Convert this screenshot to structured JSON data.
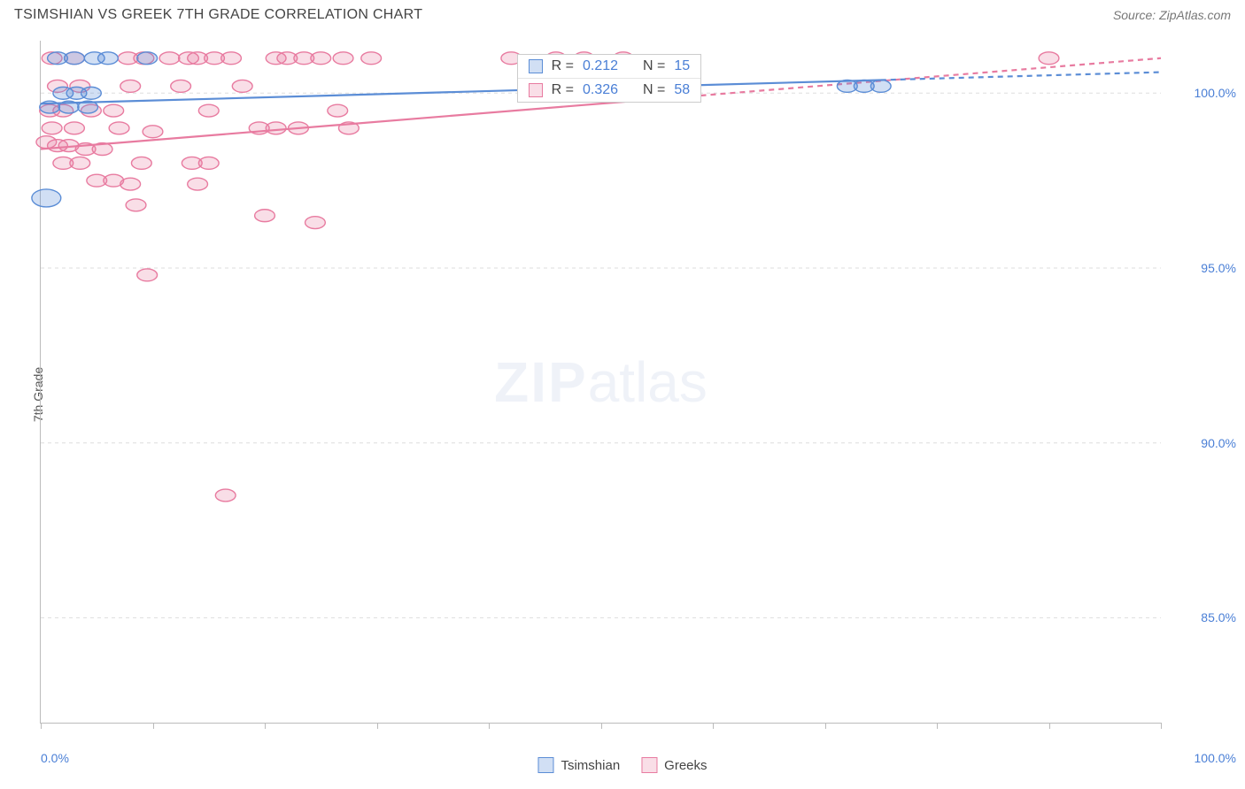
{
  "header": {
    "title": "TSIMSHIAN VS GREEK 7TH GRADE CORRELATION CHART",
    "source_prefix": "Source: ",
    "source_name": "ZipAtlas.com"
  },
  "watermark": {
    "bold": "ZIP",
    "light": "atlas"
  },
  "chart": {
    "type": "scatter",
    "ylabel": "7th Grade",
    "background_color": "#ffffff",
    "grid_color": "#dddddd",
    "axis_color": "#bbbbbb",
    "tick_label_color": "#4a7fd6",
    "xlim": [
      0,
      100
    ],
    "ylim": [
      82,
      101.5
    ],
    "xticks": [
      0,
      10,
      20,
      30,
      40,
      50,
      60,
      70,
      80,
      90,
      100
    ],
    "yticks": [
      85,
      90,
      95,
      100
    ],
    "ytick_labels": [
      "85.0%",
      "90.0%",
      "95.0%",
      "100.0%"
    ],
    "xtick_labels_shown": {
      "0": "0.0%",
      "100": "100.0%"
    },
    "marker_radius": 9,
    "marker_radius_small": 7,
    "marker_radius_large": 13,
    "marker_stroke_width": 1.4,
    "marker_fill_opacity": 0.25,
    "trend_line_width": 2.2,
    "dash_pattern": "6 5",
    "series": {
      "tsimshian": {
        "label": "Tsimshian",
        "color": "#5b8dd6",
        "fill": "rgba(91,141,214,0.28)",
        "stroke": "#5b8dd6",
        "trend": {
          "x1": 0,
          "y1": 99.7,
          "x2": 100,
          "y2": 100.6
        },
        "trend_dash_after_x": 75,
        "points": [
          {
            "x": 1.5,
            "y": 101.0,
            "r": 9
          },
          {
            "x": 3.0,
            "y": 101.0,
            "r": 9
          },
          {
            "x": 4.8,
            "y": 101.0,
            "r": 9
          },
          {
            "x": 6.0,
            "y": 101.0,
            "r": 9
          },
          {
            "x": 9.5,
            "y": 101.0,
            "r": 9
          },
          {
            "x": 2.0,
            "y": 100.0,
            "r": 9
          },
          {
            "x": 3.2,
            "y": 100.0,
            "r": 9
          },
          {
            "x": 4.5,
            "y": 100.0,
            "r": 9
          },
          {
            "x": 0.8,
            "y": 99.6,
            "r": 9
          },
          {
            "x": 2.5,
            "y": 99.6,
            "r": 9
          },
          {
            "x": 4.2,
            "y": 99.6,
            "r": 9
          },
          {
            "x": 0.5,
            "y": 97.0,
            "r": 13
          },
          {
            "x": 72.0,
            "y": 100.2,
            "r": 9
          },
          {
            "x": 73.5,
            "y": 100.2,
            "r": 9
          },
          {
            "x": 75.0,
            "y": 100.2,
            "r": 9
          }
        ]
      },
      "greeks": {
        "label": "Greeks",
        "color": "#e87ba0",
        "fill": "rgba(232,123,160,0.25)",
        "stroke": "#e87ba0",
        "trend": {
          "x1": 0,
          "y1": 98.4,
          "x2": 100,
          "y2": 101.0
        },
        "trend_dash_after_x": 52,
        "points": [
          {
            "x": 1.0,
            "y": 101.0
          },
          {
            "x": 3.0,
            "y": 101.0
          },
          {
            "x": 7.8,
            "y": 101.0
          },
          {
            "x": 9.2,
            "y": 101.0
          },
          {
            "x": 11.5,
            "y": 101.0
          },
          {
            "x": 13.2,
            "y": 101.0
          },
          {
            "x": 14.0,
            "y": 101.0
          },
          {
            "x": 15.5,
            "y": 101.0
          },
          {
            "x": 17.0,
            "y": 101.0
          },
          {
            "x": 21.0,
            "y": 101.0
          },
          {
            "x": 22.0,
            "y": 101.0
          },
          {
            "x": 23.5,
            "y": 101.0
          },
          {
            "x": 25.0,
            "y": 101.0
          },
          {
            "x": 27.0,
            "y": 101.0
          },
          {
            "x": 29.5,
            "y": 101.0
          },
          {
            "x": 42.0,
            "y": 101.0
          },
          {
            "x": 46.0,
            "y": 101.0
          },
          {
            "x": 48.5,
            "y": 101.0
          },
          {
            "x": 52.0,
            "y": 101.0
          },
          {
            "x": 90.0,
            "y": 101.0
          },
          {
            "x": 1.5,
            "y": 100.2
          },
          {
            "x": 3.5,
            "y": 100.2
          },
          {
            "x": 8.0,
            "y": 100.2
          },
          {
            "x": 12.5,
            "y": 100.2
          },
          {
            "x": 18.0,
            "y": 100.2
          },
          {
            "x": 0.8,
            "y": 99.5
          },
          {
            "x": 2.0,
            "y": 99.5
          },
          {
            "x": 4.5,
            "y": 99.5
          },
          {
            "x": 6.5,
            "y": 99.5
          },
          {
            "x": 15.0,
            "y": 99.5
          },
          {
            "x": 26.5,
            "y": 99.5
          },
          {
            "x": 1.0,
            "y": 99.0
          },
          {
            "x": 3.0,
            "y": 99.0
          },
          {
            "x": 7.0,
            "y": 99.0
          },
          {
            "x": 10.0,
            "y": 98.9
          },
          {
            "x": 19.5,
            "y": 99.0
          },
          {
            "x": 21.0,
            "y": 99.0
          },
          {
            "x": 23.0,
            "y": 99.0
          },
          {
            "x": 27.5,
            "y": 99.0
          },
          {
            "x": 0.5,
            "y": 98.6
          },
          {
            "x": 1.5,
            "y": 98.5
          },
          {
            "x": 2.5,
            "y": 98.5
          },
          {
            "x": 4.0,
            "y": 98.4
          },
          {
            "x": 5.5,
            "y": 98.4
          },
          {
            "x": 2.0,
            "y": 98.0
          },
          {
            "x": 3.5,
            "y": 98.0
          },
          {
            "x": 9.0,
            "y": 98.0
          },
          {
            "x": 13.5,
            "y": 98.0
          },
          {
            "x": 15.0,
            "y": 98.0
          },
          {
            "x": 5.0,
            "y": 97.5
          },
          {
            "x": 6.5,
            "y": 97.5
          },
          {
            "x": 8.0,
            "y": 97.4
          },
          {
            "x": 14.0,
            "y": 97.4
          },
          {
            "x": 8.5,
            "y": 96.8
          },
          {
            "x": 20.0,
            "y": 96.5
          },
          {
            "x": 24.5,
            "y": 96.3
          },
          {
            "x": 9.5,
            "y": 94.8
          },
          {
            "x": 16.5,
            "y": 88.5
          }
        ]
      }
    },
    "stats_box": {
      "left_pct": 42.5,
      "top_pct": 2.0,
      "rows": [
        {
          "series": "tsimshian",
          "r_label": "R =",
          "r_value": "0.212",
          "n_label": "N =",
          "n_value": "15"
        },
        {
          "series": "greeks",
          "r_label": "R =",
          "r_value": "0.326",
          "n_label": "N =",
          "n_value": "58"
        }
      ]
    }
  },
  "legend": [
    {
      "series": "tsimshian"
    },
    {
      "series": "greeks"
    }
  ]
}
